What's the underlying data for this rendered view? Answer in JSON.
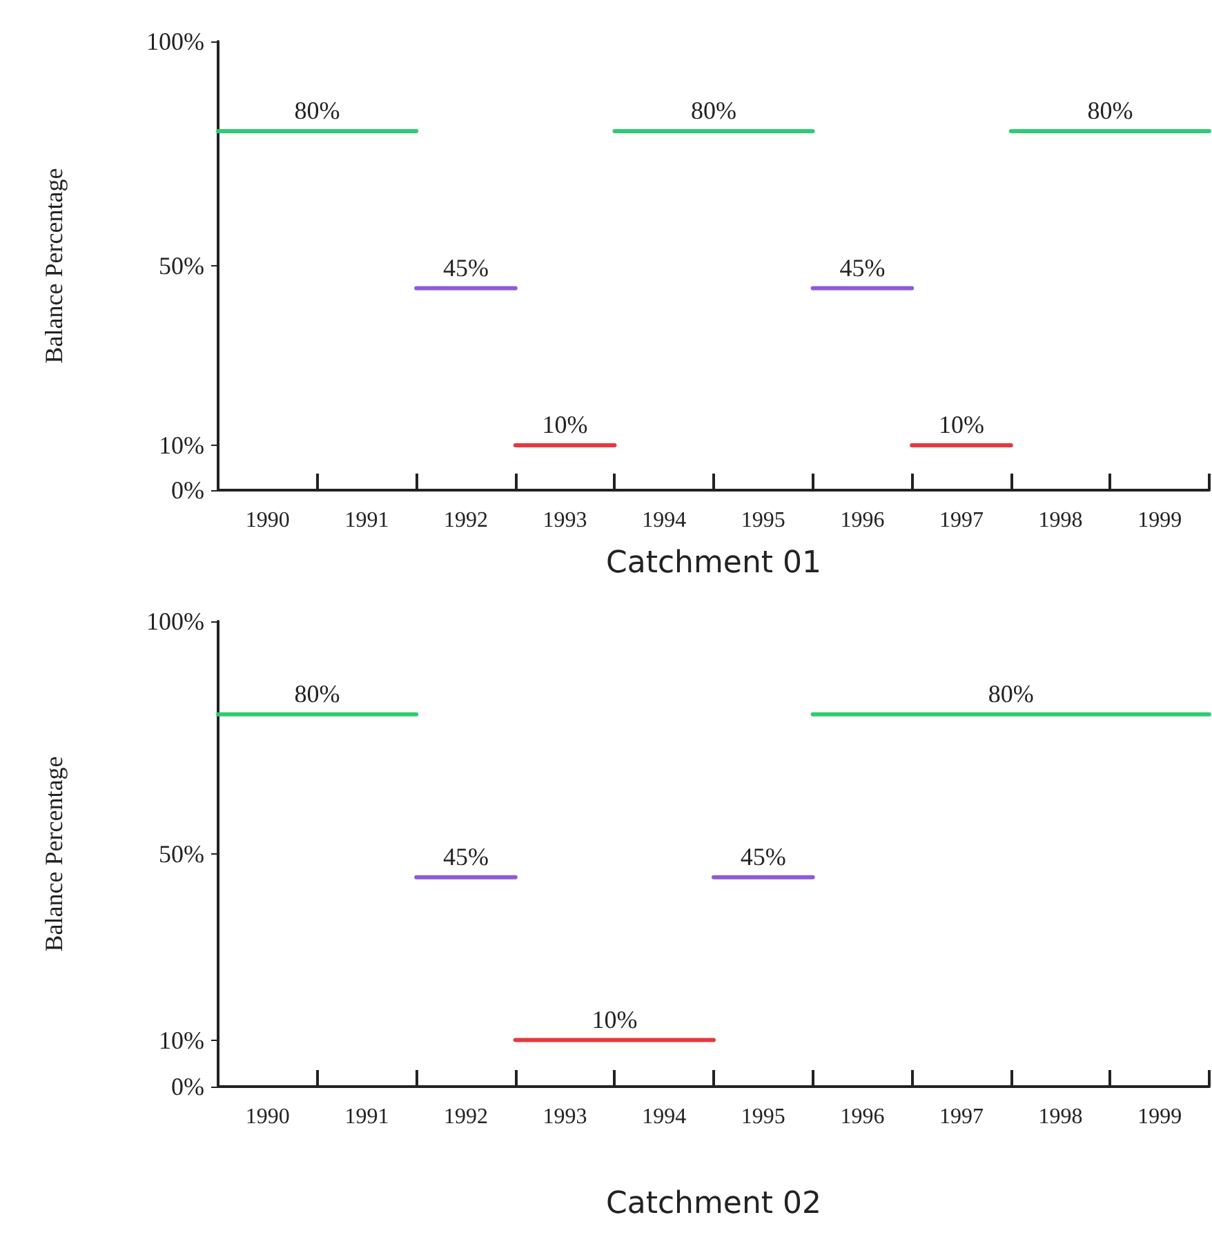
{
  "chart_data": [
    {
      "type": "line",
      "marker": "none",
      "xlabel": "Catchment 01",
      "ylabel": "Balance Percentage",
      "series": [
        {
          "color": "#2ecc71",
          "x": [
            1989.5,
            1990.5,
            1991.5,
            1992.5,
            1993.5,
            1994.5,
            1995.5,
            1996.5,
            1997.5,
            1998.5,
            1999.5
          ],
          "values": [
            80,
            80,
            80,
            null,
            80,
            80,
            80,
            null,
            80,
            80,
            80
          ],
          "value_labels": [
            null,
            "80%",
            null,
            null,
            null,
            "80%",
            null,
            null,
            null,
            "80%",
            null
          ]
        },
        {
          "color": "#8e5bd6",
          "x": [
            1991.5,
            1992,
            1992.5,
            1994,
            1995.5,
            1996,
            1996.5
          ],
          "values": [
            45,
            45,
            45,
            null,
            45,
            45,
            45
          ],
          "value_labels": [
            null,
            "45%",
            null,
            null,
            null,
            "45%",
            null
          ]
        },
        {
          "color": "#e8383d",
          "x": [
            1992.5,
            1993,
            1993.5,
            1995,
            1996.5,
            1997,
            1997.5
          ],
          "values": [
            10,
            10,
            10,
            null,
            10,
            10,
            10
          ],
          "value_labels": [
            null,
            "10%",
            null,
            null,
            null,
            "10%",
            null
          ]
        }
      ],
      "xlim": [
        1989.5,
        1999.5
      ],
      "xticks": [
        1990,
        1991,
        1992,
        1993,
        1994,
        1995,
        1996,
        1997,
        1998,
        1999,
        {
          "value": 1990.5,
          "label": null
        },
        {
          "value": 1991.5,
          "label": null
        },
        {
          "value": 1992.5,
          "label": null
        },
        {
          "value": 1993.5,
          "label": null
        },
        {
          "value": 1994.5,
          "label": null
        },
        {
          "value": 1995.5,
          "label": null
        },
        {
          "value": 1996.5,
          "label": null
        },
        {
          "value": 1997.5,
          "label": null
        },
        {
          "value": 1998.5,
          "label": null
        },
        {
          "value": 1999.5,
          "label": null
        }
      ],
      "ylim": [
        0,
        100
      ],
      "yticks": [
        {
          "value": 0,
          "label": "0%"
        },
        {
          "value": 10,
          "label": "10%"
        },
        {
          "value": 50,
          "label": "50%"
        },
        {
          "value": 100,
          "label": "100%"
        }
      ]
    },
    {
      "type": "line",
      "marker": "none",
      "xlabel": "Catchment 02",
      "ylabel": "Balance Percentage",
      "series": [
        {
          "color": "#2ecc71",
          "x": [
            1989.5,
            1990.5,
            1991.5,
            1993,
            1995.5,
            1997.5,
            1999.5
          ],
          "values": [
            80,
            80,
            80,
            null,
            80,
            80,
            80
          ],
          "value_labels": [
            null,
            "80%",
            null,
            null,
            null,
            "80%",
            null
          ]
        },
        {
          "color": "#8e5bd6",
          "x": [
            1991.5,
            1992,
            1992.5,
            1993.5,
            1994.5,
            1995,
            1995.5
          ],
          "values": [
            45,
            45,
            45,
            null,
            45,
            45,
            45
          ],
          "value_labels": [
            null,
            "45%",
            null,
            null,
            null,
            "45%",
            null
          ]
        },
        {
          "color": "#e8383d",
          "x": [
            1992.5,
            1993.5,
            1994.5
          ],
          "values": [
            10,
            10,
            10
          ],
          "value_labels": [
            null,
            "10%",
            null
          ]
        }
      ],
      "xlim": [
        1989.5,
        1999.5
      ],
      "xticks": [
        1990,
        1991,
        1992,
        1993,
        1994,
        1995,
        1996,
        1997,
        1998,
        1999,
        {
          "value": 1990.5,
          "label": null
        },
        {
          "value": 1991.5,
          "label": null
        },
        {
          "value": 1992.5,
          "label": null
        },
        {
          "value": 1993.5,
          "label": null
        },
        {
          "value": 1994.5,
          "label": null
        },
        {
          "value": 1995.5,
          "label": null
        },
        {
          "value": 1996.5,
          "label": null
        },
        {
          "value": 1997.5,
          "label": null
        },
        {
          "value": 1998.5,
          "label": null
        },
        {
          "value": 1999.5,
          "label": null
        }
      ],
      "ylim": [
        0,
        100
      ],
      "yticks": [
        {
          "value": 0,
          "label": "0%"
        },
        {
          "value": 10,
          "label": "10%"
        },
        {
          "value": 50,
          "label": "50%"
        },
        {
          "value": 100,
          "label": "100%"
        }
      ]
    }
  ]
}
